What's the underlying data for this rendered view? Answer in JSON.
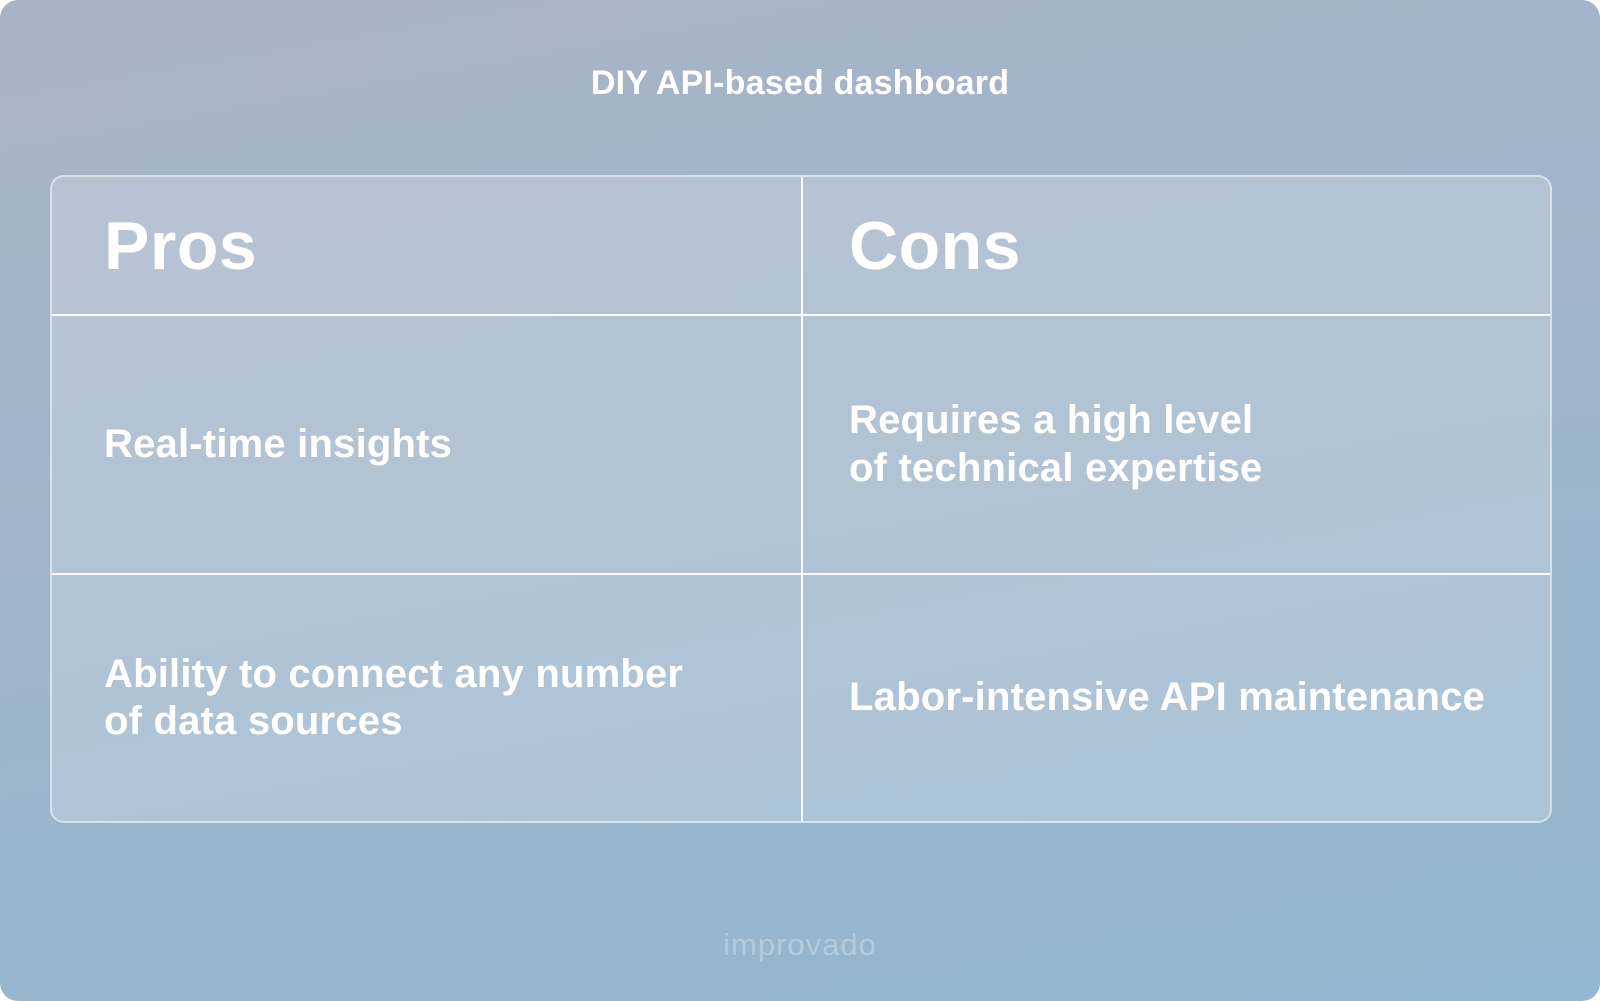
{
  "header": {
    "title": "DIY API-based dashboard"
  },
  "comparison_table": {
    "columns": [
      {
        "header": "Pros",
        "items": [
          "Real-time insights",
          "Ability to connect any number\nof data sources"
        ]
      },
      {
        "header": "Cons",
        "items": [
          "Requires a high level\nof technical expertise",
          "Labor-intensive API maintenance"
        ]
      }
    ]
  },
  "footer": {
    "brand": "improvado"
  },
  "colors": {
    "background_top": "#aab3c6",
    "background_bottom": "#92b7d0",
    "cell_overlay": "rgba(255,255,255,0.20)",
    "divider_line": "rgba(255,255,255,0.92)",
    "outer_border": "rgba(255,255,255,0.50)",
    "text": "#ffffff",
    "watermark": "#b6cbd9"
  }
}
